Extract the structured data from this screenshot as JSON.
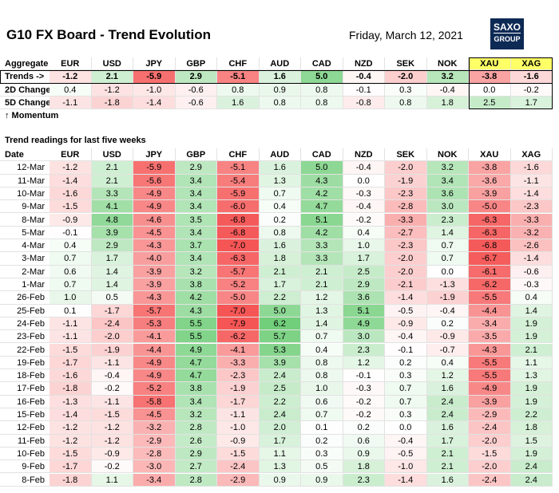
{
  "header": {
    "title": "G10 FX Board - Trend Evolution",
    "date": "Friday, March 12, 2021",
    "logo": [
      "SAXO",
      "GROUP"
    ]
  },
  "aggregate": {
    "label": "Aggregate",
    "columns": [
      "EUR",
      "USD",
      "JPY",
      "GBP",
      "CHF",
      "AUD",
      "CAD",
      "NZD",
      "SEK",
      "NOK",
      "XAU",
      "XAG"
    ],
    "rows": [
      {
        "label": "Trends ->",
        "values": [
          "-1.2",
          "2.1",
          "-5.9",
          "2.9",
          "-5.1",
          "1.6",
          "5.0",
          "-0.4",
          "-2.0",
          "3.2",
          "-3.8",
          "-1.6"
        ]
      },
      {
        "label": "2D Change",
        "values": [
          "0.4",
          "-1.2",
          "-1.0",
          "-0.6",
          "0.8",
          "0.9",
          "0.8",
          "-0.1",
          "0.3",
          "-0.4",
          "0.0",
          "-0.2"
        ]
      },
      {
        "label": "5D Change",
        "values": [
          "-1.1",
          "-1.8",
          "-1.4",
          "-0.6",
          "1.6",
          "0.8",
          "0.8",
          "-0.8",
          "0.8",
          "1.8",
          "2.5",
          "1.7"
        ]
      }
    ],
    "note": "↑ Momentum"
  },
  "readings": {
    "title": "Trend readings for last five weeks",
    "date_label": "Date",
    "columns": [
      "EUR",
      "USD",
      "JPY",
      "GBP",
      "CHF",
      "AUD",
      "CAD",
      "NZD",
      "SEK",
      "NOK",
      "XAU",
      "XAG"
    ],
    "rows": [
      {
        "date": "12-Mar",
        "values": [
          "-1.2",
          "2.1",
          "-5.9",
          "2.9",
          "-5.1",
          "1.6",
          "5.0",
          "-0.4",
          "-2.0",
          "3.2",
          "-3.8",
          "-1.6"
        ]
      },
      {
        "date": "11-Mar",
        "values": [
          "-1.4",
          "2.1",
          "-5.6",
          "3.4",
          "-5.4",
          "1.3",
          "4.3",
          "0.0",
          "-1.9",
          "3.4",
          "-3.6",
          "-1.1"
        ]
      },
      {
        "date": "10-Mar",
        "values": [
          "-1.6",
          "3.3",
          "-4.9",
          "3.4",
          "-5.9",
          "0.7",
          "4.2",
          "-0.3",
          "-2.3",
          "3.6",
          "-3.9",
          "-1.4"
        ]
      },
      {
        "date": "9-Mar",
        "values": [
          "-1.5",
          "4.1",
          "-4.9",
          "3.4",
          "-6.0",
          "0.4",
          "4.7",
          "-0.4",
          "-2.8",
          "3.0",
          "-5.0",
          "-2.3"
        ]
      },
      {
        "date": "8-Mar",
        "values": [
          "-0.9",
          "4.8",
          "-4.6",
          "3.5",
          "-6.8",
          "0.2",
          "5.1",
          "-0.2",
          "-3.3",
          "2.3",
          "-6.3",
          "-3.3"
        ]
      },
      {
        "date": "5-Mar",
        "values": [
          "-0.1",
          "3.9",
          "-4.5",
          "3.4",
          "-6.8",
          "0.8",
          "4.2",
          "0.4",
          "-2.7",
          "1.4",
          "-6.3",
          "-3.2"
        ]
      },
      {
        "date": "4-Mar",
        "values": [
          "0.4",
          "2.9",
          "-4.3",
          "3.7",
          "-7.0",
          "1.6",
          "3.3",
          "1.0",
          "-2.3",
          "0.7",
          "-6.8",
          "-2.6"
        ]
      },
      {
        "date": "3-Mar",
        "values": [
          "0.7",
          "1.7",
          "-4.0",
          "3.4",
          "-6.3",
          "1.8",
          "3.3",
          "1.7",
          "-2.0",
          "0.7",
          "-6.7",
          "-1.4"
        ]
      },
      {
        "date": "2-Mar",
        "values": [
          "0.6",
          "1.4",
          "-3.9",
          "3.2",
          "-5.7",
          "2.1",
          "2.1",
          "2.5",
          "-2.0",
          "0.0",
          "-6.1",
          "-0.6"
        ]
      },
      {
        "date": "1-Mar",
        "values": [
          "0.7",
          "1.4",
          "-3.9",
          "3.8",
          "-5.2",
          "1.7",
          "2.1",
          "2.9",
          "-2.1",
          "-1.3",
          "-6.2",
          "-0.3"
        ]
      },
      {
        "date": "26-Feb",
        "values": [
          "1.0",
          "0.5",
          "-4.3",
          "4.2",
          "-5.0",
          "2.2",
          "1.2",
          "3.6",
          "-1.4",
          "-1.9",
          "-5.5",
          "0.4"
        ]
      },
      {
        "date": "25-Feb",
        "values": [
          "0.1",
          "-1.7",
          "-5.7",
          "4.3",
          "-7.0",
          "5.0",
          "1.3",
          "5.1",
          "-0.5",
          "-0.4",
          "-4.4",
          "1.4"
        ]
      },
      {
        "date": "24-Feb",
        "values": [
          "-1.1",
          "-2.4",
          "-5.3",
          "5.5",
          "-7.9",
          "6.2",
          "1.4",
          "4.9",
          "-0.9",
          "0.2",
          "-3.4",
          "1.9"
        ]
      },
      {
        "date": "23-Feb",
        "values": [
          "-1.1",
          "-2.0",
          "-4.1",
          "5.5",
          "-6.2",
          "5.7",
          "0.7",
          "3.0",
          "-0.4",
          "-0.9",
          "-3.5",
          "1.9"
        ]
      },
      {
        "date": "22-Feb",
        "values": [
          "-1.5",
          "-1.9",
          "-4.4",
          "4.9",
          "-4.1",
          "5.3",
          "0.4",
          "2.3",
          "-0.1",
          "-0.7",
          "-4.3",
          "2.1"
        ]
      },
      {
        "date": "19-Feb",
        "values": [
          "-1.7",
          "-1.1",
          "-4.9",
          "4.7",
          "-3.3",
          "3.9",
          "0.8",
          "1.2",
          "0.2",
          "0.4",
          "-5.5",
          "1.1"
        ]
      },
      {
        "date": "18-Feb",
        "values": [
          "-1.6",
          "-0.4",
          "-4.9",
          "4.7",
          "-2.3",
          "2.4",
          "0.8",
          "-0.1",
          "0.3",
          "1.2",
          "-5.5",
          "1.3"
        ]
      },
      {
        "date": "17-Feb",
        "values": [
          "-1.8",
          "-0.2",
          "-5.2",
          "3.8",
          "-1.9",
          "2.5",
          "1.0",
          "-0.3",
          "0.7",
          "1.6",
          "-4.9",
          "1.9"
        ]
      },
      {
        "date": "16-Feb",
        "values": [
          "-1.3",
          "-1.1",
          "-5.8",
          "3.4",
          "-1.7",
          "2.2",
          "0.6",
          "-0.2",
          "0.7",
          "2.4",
          "-3.9",
          "1.9"
        ]
      },
      {
        "date": "15-Feb",
        "values": [
          "-1.4",
          "-1.5",
          "-4.5",
          "3.2",
          "-1.1",
          "2.4",
          "0.7",
          "-0.2",
          "0.3",
          "2.4",
          "-2.9",
          "2.2"
        ]
      },
      {
        "date": "12-Feb",
        "values": [
          "-1.2",
          "-1.2",
          "-3.2",
          "2.8",
          "-1.0",
          "2.0",
          "0.1",
          "0.2",
          "0.0",
          "1.6",
          "-2.4",
          "1.8"
        ]
      },
      {
        "date": "11-Feb",
        "values": [
          "-1.2",
          "-1.2",
          "-2.9",
          "2.6",
          "-0.9",
          "1.7",
          "0.2",
          "0.6",
          "-0.4",
          "1.7",
          "-2.0",
          "1.5"
        ]
      },
      {
        "date": "10-Feb",
        "values": [
          "-1.5",
          "-0.9",
          "-2.8",
          "2.9",
          "-1.5",
          "1.1",
          "0.3",
          "0.9",
          "-0.5",
          "2.1",
          "-1.5",
          "1.9"
        ]
      },
      {
        "date": "9-Feb",
        "values": [
          "-1.7",
          "-0.2",
          "-3.0",
          "2.7",
          "-2.4",
          "1.3",
          "0.5",
          "1.8",
          "-1.0",
          "2.1",
          "-2.0",
          "2.4"
        ]
      },
      {
        "date": "8-Feb",
        "values": [
          "-1.8",
          "1.1",
          "-3.4",
          "2.8",
          "-2.9",
          "0.9",
          "0.9",
          "2.3",
          "-1.4",
          "1.6",
          "-2.4",
          "2.4"
        ]
      }
    ]
  }
}
